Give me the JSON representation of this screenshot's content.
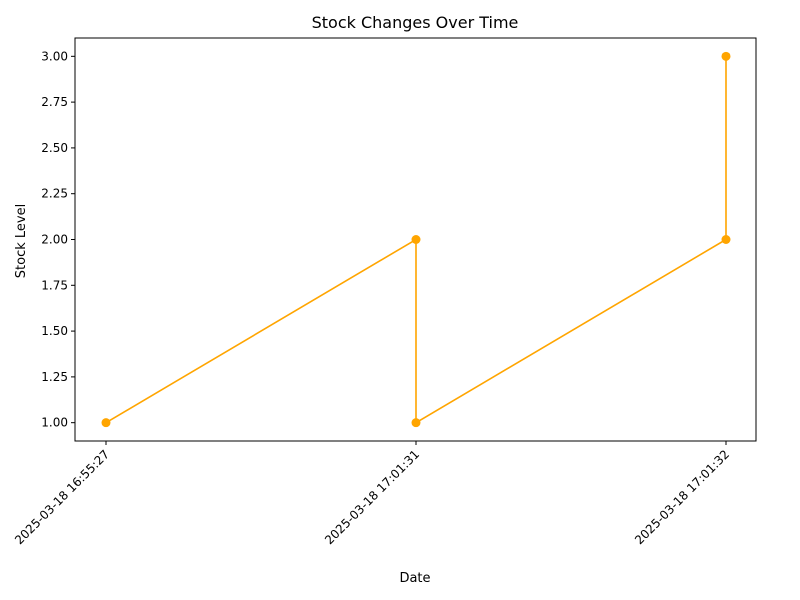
{
  "chart_data": {
    "type": "line",
    "title": "Stock Changes Over Time",
    "xlabel": "Date",
    "ylabel": "Stock Level",
    "categories": [
      "2025-03-18 16:55:27",
      "2025-03-18 17:01:31",
      "2025-03-18 17:01:32"
    ],
    "points": [
      {
        "x": "2025-03-18 16:55:27",
        "y": 1.0
      },
      {
        "x": "2025-03-18 17:01:31",
        "y": 2.0
      },
      {
        "x": "2025-03-18 17:01:31",
        "y": 1.0
      },
      {
        "x": "2025-03-18 17:01:32",
        "y": 2.0
      },
      {
        "x": "2025-03-18 17:01:32",
        "y": 3.0
      }
    ],
    "yticks": [
      "1.00",
      "1.25",
      "1.50",
      "1.75",
      "2.00",
      "2.25",
      "2.50",
      "2.75",
      "3.00"
    ],
    "ylim": [
      0.9,
      3.1
    ],
    "grid": false,
    "line_color": "#ffa500"
  }
}
